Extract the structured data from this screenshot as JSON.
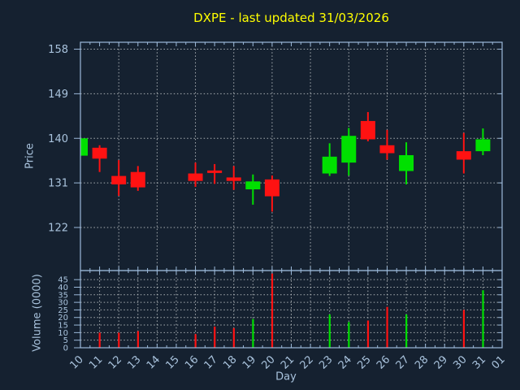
{
  "title": "DXPE - last updated 31/03/2026",
  "colors": {
    "background": "#152130",
    "axis": "#9cb9d9",
    "tick_label": "#a9c3dd",
    "title": "#ffff00",
    "grid": "#c3c8ca",
    "up": "#00e000",
    "down": "#ff1212"
  },
  "chart_data": {
    "type": "candlestick",
    "title": "DXPE - last updated 31/03/2026",
    "xlabel": "Day",
    "legend": null,
    "grid": true,
    "x_tick_labels": [
      "10",
      "11",
      "12",
      "13",
      "14",
      "15",
      "16",
      "17",
      "18",
      "19",
      "20",
      "21",
      "22",
      "23",
      "24",
      "25",
      "26",
      "27",
      "28",
      "29",
      "30",
      "31",
      "01"
    ],
    "panes": [
      {
        "name": "price",
        "ylabel": "Price",
        "yticks": [
          158,
          149,
          140,
          131,
          122
        ],
        "ylim": [
          113.3,
          159.4
        ]
      },
      {
        "name": "volume",
        "ylabel": "Volume (0000)",
        "yticks": [
          45,
          40,
          35,
          30,
          25,
          20,
          15,
          10,
          5,
          0
        ],
        "ylim": [
          0,
          51
        ]
      }
    ],
    "price_gridline_days": [
      "12",
      "14",
      "16",
      "18",
      "20",
      "22",
      "24",
      "26",
      "28",
      "30"
    ],
    "series": [
      {
        "day": "10",
        "open": 136.5,
        "high": 140.0,
        "low": 136.5,
        "close": 140.0,
        "volume": null
      },
      {
        "day": "11",
        "open": 138.1,
        "high": 138.6,
        "low": 133.2,
        "close": 135.9,
        "volume": 10
      },
      {
        "day": "12",
        "open": 132.4,
        "high": 135.6,
        "low": 128.4,
        "close": 130.7,
        "volume": 10
      },
      {
        "day": "13",
        "open": 133.2,
        "high": 134.4,
        "low": 129.4,
        "close": 130.1,
        "volume": 11
      },
      {
        "day": "16",
        "open": 132.9,
        "high": 135.1,
        "low": 130.2,
        "close": 131.4,
        "volume": 9
      },
      {
        "day": "17",
        "open": 133.5,
        "high": 134.8,
        "low": 130.8,
        "close": 133.3,
        "volume": 14
      },
      {
        "day": "18",
        "open": 132.1,
        "high": 134.4,
        "low": 129.6,
        "close": 131.4,
        "volume": 13
      },
      {
        "day": "19",
        "open": 129.7,
        "high": 132.7,
        "low": 126.6,
        "close": 131.3,
        "volume": 19
      },
      {
        "day": "20",
        "open": 131.7,
        "high": 132.5,
        "low": 125.2,
        "close": 128.3,
        "volume": 49
      },
      {
        "day": "23",
        "open": 132.9,
        "high": 139.0,
        "low": 132.4,
        "close": 136.3,
        "volume": 22
      },
      {
        "day": "24",
        "open": 135.1,
        "high": 142.1,
        "low": 132.5,
        "close": 140.5,
        "volume": 17
      },
      {
        "day": "25",
        "open": 143.5,
        "high": 145.3,
        "low": 139.4,
        "close": 139.8,
        "volume": 18
      },
      {
        "day": "26",
        "open": 138.6,
        "high": 141.7,
        "low": 135.7,
        "close": 137.0,
        "volume": 27
      },
      {
        "day": "27",
        "open": 133.4,
        "high": 139.2,
        "low": 130.7,
        "close": 136.6,
        "volume": 22
      },
      {
        "day": "30",
        "open": 137.4,
        "high": 141.1,
        "low": 132.9,
        "close": 135.7,
        "volume": 25
      },
      {
        "day": "31",
        "open": 137.4,
        "high": 142.0,
        "low": 136.6,
        "close": 139.8,
        "volume": 38
      }
    ]
  }
}
